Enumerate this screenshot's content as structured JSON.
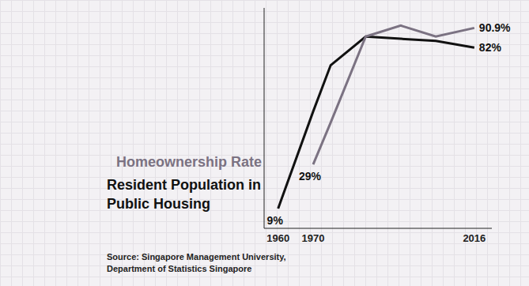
{
  "chart_data": {
    "type": "line",
    "x": [
      1960,
      1970,
      1975,
      1985,
      1995,
      2005,
      2016
    ],
    "xlim": [
      1956,
      2021
    ],
    "xticks": [
      1960,
      1970,
      2016
    ],
    "ylim": [
      0,
      100
    ],
    "yticks": [],
    "tick_labels": "x",
    "grid": false,
    "data_labels": true,
    "series": [
      {
        "name": "Resident Population in Public Housing",
        "color": "#111111",
        "values": [
          9,
          53,
          74,
          87,
          86,
          85,
          82
        ],
        "value_labels": [
          "9%",
          null,
          null,
          null,
          null,
          null,
          "82%"
        ]
      },
      {
        "name": "Homeownership Rate",
        "color": "#7b7282",
        "values": [
          null,
          29,
          48,
          87,
          92,
          87,
          90.9
        ],
        "value_labels": [
          null,
          "29%",
          null,
          null,
          null,
          null,
          "90.9%"
        ]
      }
    ],
    "source": "Source: Singapore Management University, Department of Statistics Singapore"
  }
}
